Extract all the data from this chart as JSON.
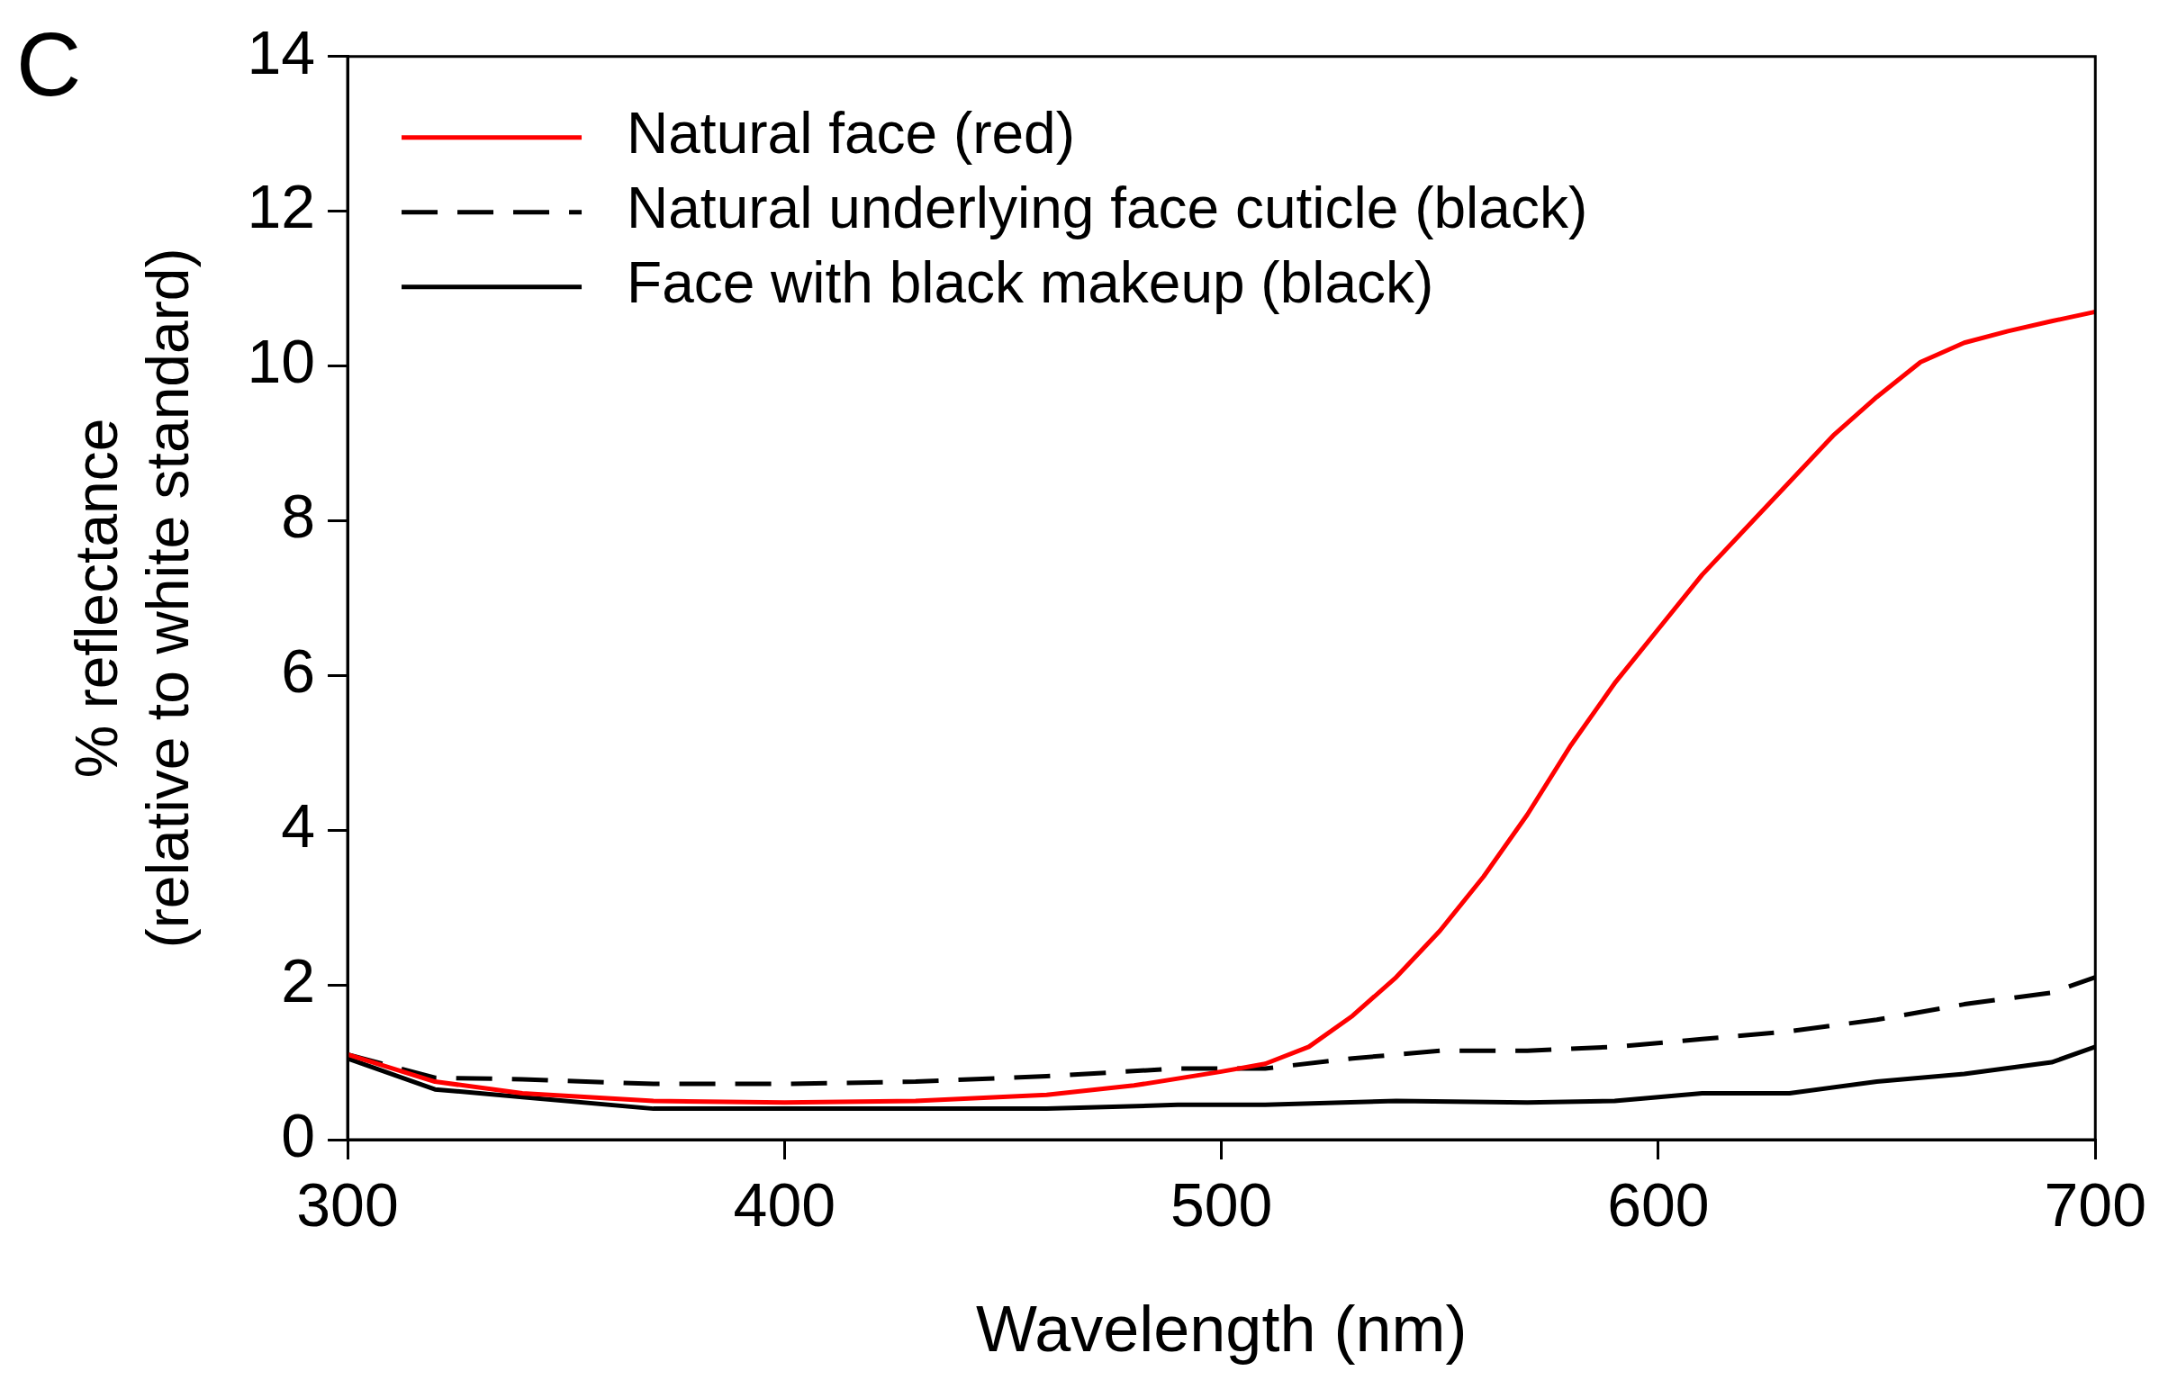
{
  "chart_data": {
    "type": "line",
    "xlabel": "Wavelength (nm)",
    "ylabel": "% reflectance (relative to white standard)",
    "annotations": [
      "C"
    ],
    "xlim": [
      300,
      700
    ],
    "xticks": [
      300,
      400,
      500,
      600,
      700
    ],
    "ylim": [
      0,
      14
    ],
    "yticks": [
      0,
      2,
      4,
      6,
      8,
      10,
      12,
      14
    ],
    "grid": false,
    "legend": "top left",
    "marker": "none",
    "series": [
      {
        "name": "Natural face (red)",
        "color": "#ff0000",
        "line_style": "solid",
        "x": [
          300,
          320,
          340,
          370,
          400,
          430,
          460,
          480,
          500,
          510,
          520,
          530,
          540,
          550,
          560,
          570,
          580,
          590,
          600,
          610,
          620,
          630,
          640,
          650,
          660,
          670,
          680,
          690,
          700
        ],
        "values": [
          1.1,
          0.75,
          0.6,
          0.5,
          0.48,
          0.5,
          0.58,
          0.7,
          0.88,
          0.98,
          1.2,
          1.6,
          2.1,
          2.7,
          3.4,
          4.2,
          5.1,
          5.9,
          6.6,
          7.3,
          7.9,
          8.5,
          9.1,
          9.6,
          10.05,
          10.3,
          10.45,
          10.58,
          10.7
        ]
      },
      {
        "name": "Natural underlying face cuticle (black)",
        "color": "#000000",
        "line_style": "dashed",
        "x": [
          300,
          320,
          340,
          370,
          400,
          430,
          460,
          490,
          510,
          530,
          550,
          570,
          590,
          610,
          630,
          650,
          670,
          690,
          700
        ],
        "values": [
          1.1,
          0.8,
          0.78,
          0.72,
          0.72,
          0.75,
          0.82,
          0.92,
          0.92,
          1.05,
          1.15,
          1.15,
          1.2,
          1.3,
          1.4,
          1.55,
          1.75,
          1.9,
          2.1
        ]
      },
      {
        "name": "Face with black makeup (black)",
        "color": "#000000",
        "line_style": "solid",
        "x": [
          300,
          320,
          340,
          370,
          400,
          430,
          460,
          490,
          510,
          540,
          570,
          590,
          610,
          630,
          650,
          670,
          690,
          700
        ],
        "values": [
          1.05,
          0.65,
          0.55,
          0.4,
          0.4,
          0.4,
          0.4,
          0.45,
          0.45,
          0.5,
          0.48,
          0.5,
          0.6,
          0.6,
          0.75,
          0.85,
          1.0,
          1.2
        ]
      }
    ]
  }
}
